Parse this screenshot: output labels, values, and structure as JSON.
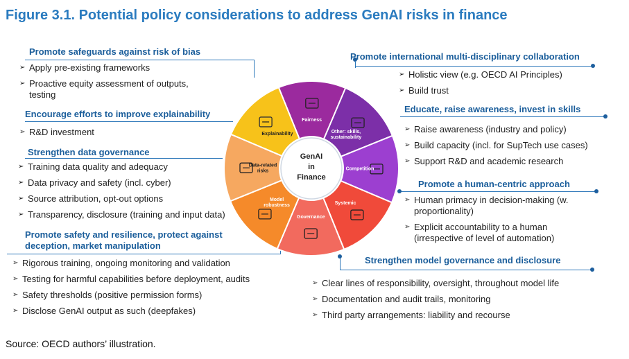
{
  "title": "Figure 3.1. Potential policy considerations to address GenAI risks in finance",
  "source": "Source: OECD authors’ illustration.",
  "wheel": {
    "center": [
      "GenAI",
      "in",
      "Finance"
    ],
    "segments": [
      {
        "label": [
          "Fairness"
        ],
        "color": "#9b2a9e",
        "icon": "scales-icon"
      },
      {
        "label": [
          "Other: skills,",
          "sustainability"
        ],
        "color": "#7c2fa8",
        "icon": "people-battery-icon"
      },
      {
        "label": [
          "Competition"
        ],
        "color": "#9c3fd0",
        "icon": "qr-code-icon"
      },
      {
        "label": [
          "Systemic"
        ],
        "color": "#f04a3a",
        "icon": "gavel-icon"
      },
      {
        "label": [
          "Governance"
        ],
        "color": "#f26a5e",
        "icon": "meeting-table-icon"
      },
      {
        "label": [
          "Model",
          "robustness"
        ],
        "color": "#f58a2a",
        "icon": "laptop-icon"
      },
      {
        "label": [
          "Data-related",
          "risks"
        ],
        "color": "#f6a860",
        "icon": "server-icon"
      },
      {
        "label": [
          "Explainability"
        ],
        "color": "#f7c21a",
        "icon": "magnifier-icon"
      }
    ]
  },
  "left": [
    {
      "heading": "Promote safeguards against risk of bias",
      "items": [
        "Apply pre-existing frameworks",
        "Proactive equity assessment of outputs, testing"
      ]
    },
    {
      "heading": "Encourage efforts to improve explainability",
      "items": [
        "R&D investment"
      ]
    },
    {
      "heading": "Strengthen data governance",
      "items": [
        "Training data quality and adequacy",
        "Data privacy and safety (incl. cyber)",
        "Source attribution, opt-out options",
        "Transparency, disclosure (training and input data)"
      ]
    },
    {
      "heading": "Promote safety and resilience, protect against deception, market manipulation",
      "items": [
        "Rigorous training, ongoing monitoring and validation",
        "Testing for harmful capabilities before deployment, audits",
        "Safety thresholds (positive permission forms)",
        "Disclose GenAI output as such (deepfakes)"
      ]
    }
  ],
  "right": [
    {
      "heading": "Promote international multi-disciplinary collaboration",
      "items": [
        "Holistic view (e.g. OECD AI Principles)",
        "Build trust"
      ]
    },
    {
      "heading": "Educate, raise awareness, invest in skills",
      "items": [
        "Raise awareness (industry and policy)",
        "Build capacity (incl. for SupTech use cases)",
        "Support R&D and academic research"
      ]
    },
    {
      "heading": "Promote a human-centric approach",
      "items": [
        "Human primacy in decision-making (w. proportionality)",
        "Explicit accountability to a human (irrespective of level of automation)"
      ]
    },
    {
      "heading": "Strengthen model governance and disclosure",
      "items": [
        "Clear lines of responsibility, oversight, throughout model life",
        "Documentation and audit trails, monitoring",
        "Third party arrangements: liability and recourse"
      ]
    }
  ]
}
